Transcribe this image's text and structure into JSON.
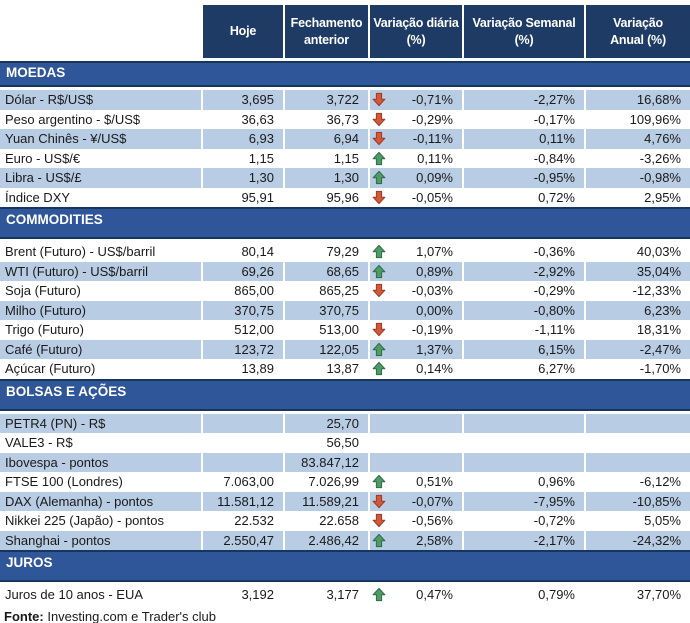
{
  "colors": {
    "header_bg": "#1E3B66",
    "section_bg": "#30569A",
    "section_border": "#16365D",
    "row_alt_bg": "#B8CCE4",
    "text": "#1A1A1A",
    "arrow_up": "#4F9B68",
    "arrow_up_border": "#2F6B45",
    "arrow_down": "#D2583B",
    "arrow_down_border": "#9D3A22"
  },
  "header": {
    "columns": [
      "Hoje",
      "Fechamento\nanterior",
      "Variação diária\n(%)",
      "Variação Semanal\n(%)",
      "Variação\nAnual (%)"
    ]
  },
  "sections": [
    {
      "id": "moedas",
      "title": "MOEDAS",
      "first_row_shaded": true,
      "rows": [
        {
          "label": "Dólar - R$/US$",
          "hoje": "3,695",
          "fechamento": "3,722",
          "arrow": "down",
          "var_diaria": "-0,71%",
          "var_semanal": "-2,27%",
          "var_anual": "16,68%"
        },
        {
          "label": "Peso argentino - $/US$",
          "hoje": "36,63",
          "fechamento": "36,73",
          "arrow": "down",
          "var_diaria": "-0,29%",
          "var_semanal": "-0,17%",
          "var_anual": "109,96%"
        },
        {
          "label": "Yuan Chinês - ¥/US$",
          "hoje": "6,93",
          "fechamento": "6,94",
          "arrow": "down",
          "var_diaria": "-0,11%",
          "var_semanal": "0,11%",
          "var_anual": "4,76%"
        },
        {
          "label": "Euro - US$/€",
          "hoje": "1,15",
          "fechamento": "1,15",
          "arrow": "up",
          "var_diaria": "0,11%",
          "var_semanal": "-0,84%",
          "var_anual": "-3,26%"
        },
        {
          "label": "Libra - US$/£",
          "hoje": "1,30",
          "fechamento": "1,30",
          "arrow": "up",
          "var_diaria": "0,09%",
          "var_semanal": "-0,95%",
          "var_anual": "-0,98%"
        },
        {
          "label": "Índice DXY",
          "hoje": "95,91",
          "fechamento": "95,96",
          "arrow": "down",
          "var_diaria": "-0,05%",
          "var_semanal": "0,72%",
          "var_anual": "2,95%"
        }
      ]
    },
    {
      "id": "commodities",
      "title": "COMMODITIES",
      "first_row_shaded": false,
      "rows": [
        {
          "label": "Brent (Futuro) - US$/barril",
          "hoje": "80,14",
          "fechamento": "79,29",
          "arrow": "up",
          "var_diaria": "1,07%",
          "var_semanal": "-0,36%",
          "var_anual": "40,03%"
        },
        {
          "label": "WTI (Futuro) - US$/barril",
          "hoje": "69,26",
          "fechamento": "68,65",
          "arrow": "up",
          "var_diaria": "0,89%",
          "var_semanal": "-2,92%",
          "var_anual": "35,04%"
        },
        {
          "label": "Soja (Futuro)",
          "hoje": "865,00",
          "fechamento": "865,25",
          "arrow": "down",
          "var_diaria": "-0,03%",
          "var_semanal": "-0,29%",
          "var_anual": "-12,33%"
        },
        {
          "label": "Milho (Futuro)",
          "hoje": "370,75",
          "fechamento": "370,75",
          "arrow": "",
          "var_diaria": "0,00%",
          "var_semanal": "-0,80%",
          "var_anual": "6,23%"
        },
        {
          "label": "Trigo (Futuro)",
          "hoje": "512,00",
          "fechamento": "513,00",
          "arrow": "down",
          "var_diaria": "-0,19%",
          "var_semanal": "-1,11%",
          "var_anual": "18,31%"
        },
        {
          "label": "Café (Futuro)",
          "hoje": "123,72",
          "fechamento": "122,05",
          "arrow": "up",
          "var_diaria": "1,37%",
          "var_semanal": "6,15%",
          "var_anual": "-2,47%"
        },
        {
          "label": "Açúcar (Futuro)",
          "hoje": "13,89",
          "fechamento": "13,87",
          "arrow": "up",
          "var_diaria": "0,14%",
          "var_semanal": "6,27%",
          "var_anual": "-1,70%"
        }
      ]
    },
    {
      "id": "bolsas-e-acoes",
      "title": "BOLSAS E AÇÕES",
      "first_row_shaded": true,
      "rows": [
        {
          "label": "PETR4 (PN) - R$",
          "hoje": "",
          "fechamento": "25,70",
          "arrow": "",
          "var_diaria": "",
          "var_semanal": "",
          "var_anual": ""
        },
        {
          "label": "VALE3 - R$",
          "hoje": "",
          "fechamento": "56,50",
          "arrow": "",
          "var_diaria": "",
          "var_semanal": "",
          "var_anual": ""
        },
        {
          "label": "Ibovespa - pontos",
          "hoje": "",
          "fechamento": "83.847,12",
          "arrow": "",
          "var_diaria": "",
          "var_semanal": "",
          "var_anual": ""
        },
        {
          "label": "FTSE 100 (Londres)",
          "hoje": "7.063,00",
          "fechamento": "7.026,99",
          "arrow": "up",
          "var_diaria": "0,51%",
          "var_semanal": "0,96%",
          "var_anual": "-6,12%"
        },
        {
          "label": "DAX (Alemanha) - pontos",
          "hoje": "11.581,12",
          "fechamento": "11.589,21",
          "arrow": "down",
          "var_diaria": "-0,07%",
          "var_semanal": "-7,95%",
          "var_anual": "-10,85%"
        },
        {
          "label": "Nikkei 225 (Japão) - pontos",
          "hoje": "22.532",
          "fechamento": "22.658",
          "arrow": "down",
          "var_diaria": "-0,56%",
          "var_semanal": "-0,72%",
          "var_anual": "5,05%"
        },
        {
          "label": "Shanghai - pontos",
          "hoje": "2.550,47",
          "fechamento": "2.486,42",
          "arrow": "up",
          "var_diaria": "2,58%",
          "var_semanal": "-2,17%",
          "var_anual": "-24,32%"
        }
      ]
    },
    {
      "id": "juros",
      "title": "JUROS",
      "first_row_shaded": false,
      "rows": [
        {
          "label": "Juros de 10 anos - EUA",
          "hoje": "3,192",
          "fechamento": "3,177",
          "arrow": "up",
          "var_diaria": "0,47%",
          "var_semanal": "0,79%",
          "var_anual": "37,70%"
        }
      ]
    }
  ],
  "footer": {
    "label": "Fonte:",
    "text": " Investing.com e Trader's club"
  }
}
